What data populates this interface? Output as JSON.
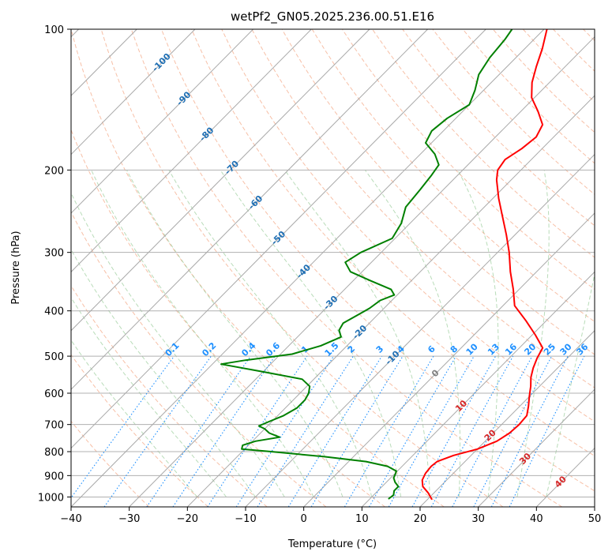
{
  "chart_data": {
    "type": "skew-t",
    "title": "wetPf2_GN05.2025.236.00.51.E16",
    "xlabel": "Temperature (°C)",
    "ylabel": "Pressure (hPa)",
    "xlim": [
      -40,
      50
    ],
    "ylim": [
      1050,
      100
    ],
    "y_scale": "log",
    "x_ticks": [
      -40,
      -30,
      -20,
      -10,
      0,
      10,
      20,
      30,
      40,
      50
    ],
    "y_ticks": [
      100,
      200,
      300,
      400,
      500,
      600,
      700,
      800,
      900,
      1000
    ],
    "grid": true,
    "isotherm_labels": [
      -100,
      -90,
      -80,
      -70,
      -60,
      -50,
      -40,
      -30,
      -20,
      -10,
      0,
      10,
      20,
      30,
      40
    ],
    "mixing_ratio_labels": [
      "0.1",
      "0.2",
      "0.4",
      "0.6",
      "1",
      "1.5",
      "2",
      "3",
      "4",
      "6",
      "8",
      "10",
      "13",
      "16",
      "20",
      "25",
      "30",
      "36"
    ],
    "series": [
      {
        "color": "#ff0000",
        "points": [
          {
            "p": 1013,
            "t": 20.8
          },
          {
            "p": 980,
            "t": 19.0
          },
          {
            "p": 950,
            "t": 17.0
          },
          {
            "p": 920,
            "t": 15.8
          },
          {
            "p": 890,
            "t": 15.2
          },
          {
            "p": 860,
            "t": 15.0
          },
          {
            "p": 840,
            "t": 15.2
          },
          {
            "p": 815,
            "t": 17.0
          },
          {
            "p": 790,
            "t": 20.0
          },
          {
            "p": 760,
            "t": 22.0
          },
          {
            "p": 730,
            "t": 22.8
          },
          {
            "p": 700,
            "t": 23.0
          },
          {
            "p": 670,
            "t": 22.8
          },
          {
            "p": 640,
            "t": 21.5
          },
          {
            "p": 610,
            "t": 20.0
          },
          {
            "p": 580,
            "t": 18.5
          },
          {
            "p": 555,
            "t": 17.0
          },
          {
            "p": 530,
            "t": 15.8
          },
          {
            "p": 505,
            "t": 14.8
          },
          {
            "p": 480,
            "t": 14.0
          },
          {
            "p": 450,
            "t": 10.5
          },
          {
            "p": 420,
            "t": 6.5
          },
          {
            "p": 390,
            "t": 2.0
          },
          {
            "p": 360,
            "t": -1.0
          },
          {
            "p": 330,
            "t": -4.5
          },
          {
            "p": 300,
            "t": -8.0
          },
          {
            "p": 275,
            "t": -11.5
          },
          {
            "p": 250,
            "t": -15.5
          },
          {
            "p": 230,
            "t": -19.0
          },
          {
            "p": 210,
            "t": -22.5
          },
          {
            "p": 200,
            "t": -24.0
          },
          {
            "p": 190,
            "t": -24.5
          },
          {
            "p": 180,
            "t": -23.5
          },
          {
            "p": 170,
            "t": -23.0
          },
          {
            "p": 160,
            "t": -24.0
          },
          {
            "p": 150,
            "t": -27.0
          },
          {
            "p": 140,
            "t": -30.5
          },
          {
            "p": 130,
            "t": -33.0
          },
          {
            "p": 120,
            "t": -35.0
          },
          {
            "p": 110,
            "t": -37.0
          },
          {
            "p": 100,
            "t": -39.5
          }
        ]
      },
      {
        "color": "#008000",
        "points": [
          {
            "p": 1010,
            "t": 13.2
          },
          {
            "p": 990,
            "t": 13.4
          },
          {
            "p": 970,
            "t": 12.8
          },
          {
            "p": 950,
            "t": 12.8
          },
          {
            "p": 930,
            "t": 11.5
          },
          {
            "p": 910,
            "t": 10.5
          },
          {
            "p": 895,
            "t": 10.2
          },
          {
            "p": 880,
            "t": 9.8
          },
          {
            "p": 860,
            "t": 7.5
          },
          {
            "p": 840,
            "t": 3.0
          },
          {
            "p": 820,
            "t": -5.0
          },
          {
            "p": 800,
            "t": -15.0
          },
          {
            "p": 790,
            "t": -20.5
          },
          {
            "p": 775,
            "t": -21.0
          },
          {
            "p": 760,
            "t": -19.5
          },
          {
            "p": 745,
            "t": -16.0
          },
          {
            "p": 730,
            "t": -18.5
          },
          {
            "p": 715,
            "t": -20.0
          },
          {
            "p": 705,
            "t": -21.5
          },
          {
            "p": 690,
            "t": -20.5
          },
          {
            "p": 670,
            "t": -19.0
          },
          {
            "p": 645,
            "t": -18.0
          },
          {
            "p": 620,
            "t": -18.0
          },
          {
            "p": 600,
            "t": -18.5
          },
          {
            "p": 580,
            "t": -19.5
          },
          {
            "p": 560,
            "t": -22.0
          },
          {
            "p": 540,
            "t": -30.0
          },
          {
            "p": 520,
            "t": -38.5
          },
          {
            "p": 510,
            "t": -35.0
          },
          {
            "p": 495,
            "t": -28.0
          },
          {
            "p": 475,
            "t": -24.5
          },
          {
            "p": 455,
            "t": -22.5
          },
          {
            "p": 440,
            "t": -24.0
          },
          {
            "p": 425,
            "t": -24.5
          },
          {
            "p": 410,
            "t": -23.5
          },
          {
            "p": 395,
            "t": -22.5
          },
          {
            "p": 380,
            "t": -22.0
          },
          {
            "p": 370,
            "t": -20.5
          },
          {
            "p": 360,
            "t": -22.0
          },
          {
            "p": 345,
            "t": -27.0
          },
          {
            "p": 330,
            "t": -32.0
          },
          {
            "p": 315,
            "t": -34.5
          },
          {
            "p": 300,
            "t": -33.5
          },
          {
            "p": 280,
            "t": -30.5
          },
          {
            "p": 260,
            "t": -31.5
          },
          {
            "p": 240,
            "t": -33.5
          },
          {
            "p": 220,
            "t": -34.0
          },
          {
            "p": 205,
            "t": -34.5
          },
          {
            "p": 195,
            "t": -35.0
          },
          {
            "p": 185,
            "t": -37.5
          },
          {
            "p": 175,
            "t": -41.0
          },
          {
            "p": 165,
            "t": -42.0
          },
          {
            "p": 155,
            "t": -41.5
          },
          {
            "p": 145,
            "t": -40.0
          },
          {
            "p": 135,
            "t": -41.5
          },
          {
            "p": 125,
            "t": -43.5
          },
          {
            "p": 115,
            "t": -44.5
          },
          {
            "p": 105,
            "t": -45.0
          },
          {
            "p": 100,
            "t": -45.5
          }
        ]
      }
    ]
  },
  "colors": {
    "temperature": "#ff0000",
    "dewpoint": "#008000",
    "isotherm_label": "#1f6fb4",
    "mixing_ratio": "#1e90ff",
    "hot_isotherm_label": "#d62728",
    "zero_label": "#808080"
  }
}
